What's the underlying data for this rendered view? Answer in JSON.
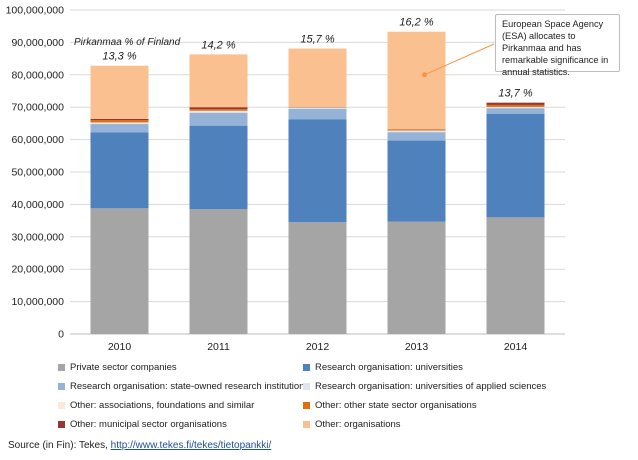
{
  "chart_data": {
    "type": "bar",
    "stacked": true,
    "categories": [
      "2010",
      "2011",
      "2012",
      "2013",
      "2014"
    ],
    "ylim": [
      0,
      100000000
    ],
    "yticks": [
      "0",
      "10,000,000",
      "20,000,000",
      "30,000,000",
      "40,000,000",
      "50,000,000",
      "60,000,000",
      "70,000,000",
      "80,000,000",
      "90,000,000",
      "100,000,000"
    ],
    "ytick_values": [
      0,
      10000000,
      20000000,
      30000000,
      40000000,
      50000000,
      60000000,
      70000000,
      80000000,
      90000000,
      100000000
    ],
    "grid": true,
    "legend_position": "bottom",
    "series": [
      {
        "name": "Private sector companies",
        "color": "#a5a5a5",
        "values": [
          38800000,
          38500000,
          34500000,
          34700000,
          36000000
        ]
      },
      {
        "name": "Research organisation: universities",
        "color": "#4f81bd",
        "values": [
          23400000,
          25800000,
          31800000,
          25000000,
          32000000
        ]
      },
      {
        "name": "Research organisation: state-owned research institutions",
        "color": "#95b3d7",
        "values": [
          2600000,
          4000000,
          3200000,
          2600000,
          1700000
        ]
      },
      {
        "name": "Research organisation: universities of applied sciences",
        "color": "#dce6f1",
        "values": [
          300000,
          400000,
          300000,
          400000,
          300000
        ]
      },
      {
        "name": "Other: associations, foundations and similar",
        "color": "#fde9d9",
        "values": [
          200000,
          200000,
          100000,
          100000,
          100000
        ]
      },
      {
        "name": "Other: other state sector organisations",
        "color": "#e26b0a",
        "values": [
          700000,
          500000,
          100000,
          300000,
          600000
        ]
      },
      {
        "name": "Other: municipal sector organisations",
        "color": "#953735",
        "values": [
          400000,
          600000,
          100000,
          100000,
          700000
        ]
      },
      {
        "name": "Other: organisations",
        "color": "#fac090",
        "values": [
          16400000,
          16300000,
          18000000,
          30100000,
          0
        ]
      }
    ],
    "share_labels": [
      "13,3 %",
      "14,2 %",
      "15,7 %",
      "16,2 %",
      "13,7 %"
    ],
    "share_heading": "Pirkanmaa % of Finland"
  },
  "callout": {
    "text": "European Space Agency (ESA) allocates to Pirkanmaa and has remarkable significance in annual statistics."
  },
  "source": {
    "prefix": "Source (in Fin): Tekes, ",
    "link": "http://www.tekes.fi/tekes/tietopankki/"
  }
}
